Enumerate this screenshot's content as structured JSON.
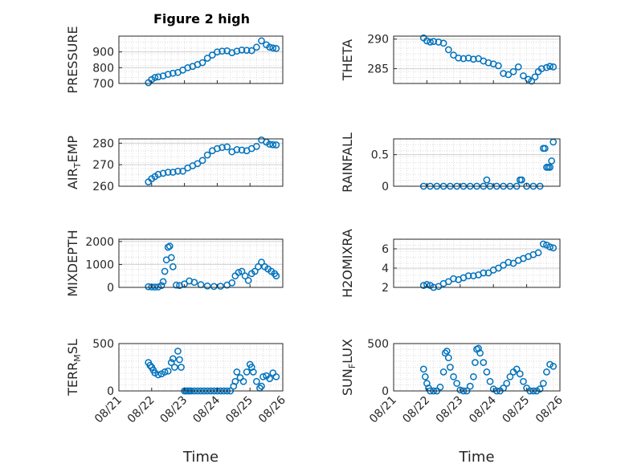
{
  "figure_title": "Figure 2 high",
  "colors": {
    "marker": "#0072BD",
    "axis": "#262626",
    "grid": "#dcdcdc"
  },
  "chart_data": [
    {
      "type": "scatter",
      "id": "pressure",
      "ylabel": "PRESSURE",
      "xlabel": "",
      "ylim": [
        700,
        1000
      ],
      "yticks": [
        700,
        800,
        900
      ],
      "xlim": [
        0,
        5
      ],
      "grid": true,
      "x": [
        0.9,
        1.0,
        1.1,
        1.2,
        1.35,
        1.5,
        1.65,
        1.8,
        1.95,
        2.1,
        2.25,
        2.4,
        2.55,
        2.7,
        2.85,
        3.0,
        3.15,
        3.3,
        3.45,
        3.6,
        3.75,
        3.9,
        4.05,
        4.2,
        4.35,
        4.5,
        4.6,
        4.7,
        4.8
      ],
      "y": [
        705,
        725,
        738,
        742,
        748,
        758,
        765,
        770,
        785,
        800,
        808,
        820,
        832,
        860,
        880,
        900,
        905,
        907,
        895,
        905,
        912,
        910,
        908,
        930,
        970,
        945,
        930,
        925,
        922
      ]
    },
    {
      "type": "scatter",
      "id": "theta",
      "ylabel": "THETA",
      "xlabel": "",
      "ylim": [
        282.5,
        290.5
      ],
      "yticks": [
        285,
        290
      ],
      "xlim": [
        0,
        5
      ],
      "grid": true,
      "x": [
        0.9,
        1.0,
        1.1,
        1.2,
        1.35,
        1.5,
        1.65,
        1.8,
        1.95,
        2.1,
        2.25,
        2.4,
        2.55,
        2.7,
        2.85,
        3.0,
        3.15,
        3.3,
        3.45,
        3.6,
        3.75,
        3.9,
        4.05,
        4.15,
        4.25,
        4.35,
        4.45,
        4.6,
        4.7,
        4.8
      ],
      "y": [
        290.2,
        289.7,
        289.5,
        289.6,
        289.5,
        289.3,
        288.2,
        287.3,
        286.8,
        286.7,
        286.8,
        286.6,
        286.7,
        286.3,
        286.0,
        285.8,
        285.5,
        284.2,
        284.0,
        284.5,
        285.3,
        283.8,
        283.2,
        282.9,
        283.6,
        284.5,
        285.0,
        285.2,
        285.4,
        285.3
      ]
    },
    {
      "type": "scatter",
      "id": "air_temp",
      "ylabel": "AIR_TEMP",
      "xlabel": "",
      "ylim": [
        260,
        282
      ],
      "yticks": [
        260,
        270,
        280
      ],
      "xlim": [
        0,
        5
      ],
      "grid": true,
      "x": [
        0.9,
        1.0,
        1.1,
        1.2,
        1.35,
        1.5,
        1.65,
        1.8,
        1.95,
        2.1,
        2.25,
        2.4,
        2.55,
        2.7,
        2.85,
        3.0,
        3.15,
        3.3,
        3.45,
        3.6,
        3.75,
        3.9,
        4.05,
        4.2,
        4.35,
        4.5,
        4.6,
        4.7,
        4.8
      ],
      "y": [
        262,
        263.5,
        264.5,
        265.5,
        266,
        266.5,
        266.5,
        267,
        267,
        268.5,
        269.5,
        270.5,
        272,
        274.5,
        276.5,
        277.5,
        278,
        278.3,
        276,
        277,
        276.8,
        276.5,
        277.5,
        278.5,
        281.5,
        280.5,
        279.5,
        279.3,
        279.2
      ]
    },
    {
      "type": "scatter",
      "id": "rainfall",
      "ylabel": "RAINFALL",
      "xlabel": "",
      "ylim": [
        0,
        0.75
      ],
      "yticks": [
        0,
        0.5
      ],
      "xlim": [
        0,
        5
      ],
      "grid": true,
      "x": [
        0.9,
        1.1,
        1.3,
        1.5,
        1.7,
        1.9,
        2.1,
        2.3,
        2.5,
        2.7,
        2.8,
        2.9,
        3.1,
        3.3,
        3.5,
        3.7,
        3.8,
        3.85,
        4.0,
        4.2,
        4.4,
        4.5,
        4.55,
        4.6,
        4.65,
        4.7,
        4.75,
        4.8
      ],
      "y": [
        0,
        0,
        0,
        0,
        0,
        0,
        0,
        0,
        0,
        0,
        0.1,
        0,
        0,
        0,
        0,
        0,
        0.1,
        0.1,
        0,
        0,
        0,
        0.6,
        0.6,
        0.3,
        0.3,
        0.3,
        0.4,
        0.7
      ]
    },
    {
      "type": "scatter",
      "id": "mixdepth",
      "ylabel": "MIXDEPTH",
      "xlabel": "",
      "ylim": [
        0,
        2100
      ],
      "yticks": [
        0,
        1000,
        2000
      ],
      "xlim": [
        0,
        5
      ],
      "grid": true,
      "x": [
        0.9,
        1.0,
        1.1,
        1.2,
        1.3,
        1.35,
        1.4,
        1.45,
        1.5,
        1.55,
        1.6,
        1.65,
        1.75,
        1.85,
        2.0,
        2.15,
        2.3,
        2.5,
        2.7,
        2.9,
        3.1,
        3.3,
        3.45,
        3.55,
        3.65,
        3.75,
        3.85,
        3.95,
        4.05,
        4.15,
        4.25,
        4.35,
        4.45,
        4.55,
        4.65,
        4.75,
        4.8
      ],
      "y": [
        30,
        20,
        15,
        20,
        80,
        250,
        700,
        1200,
        1750,
        1800,
        1300,
        900,
        100,
        80,
        150,
        280,
        220,
        120,
        60,
        40,
        50,
        100,
        200,
        500,
        650,
        700,
        500,
        300,
        600,
        700,
        900,
        1100,
        900,
        800,
        700,
        600,
        500
      ]
    },
    {
      "type": "scatter",
      "id": "h2omixra",
      "ylabel": "H2OMIXRA",
      "xlabel": "",
      "ylim": [
        2,
        7
      ],
      "yticks": [
        2,
        4,
        6
      ],
      "xlim": [
        0,
        5
      ],
      "grid": true,
      "x": [
        0.9,
        1.0,
        1.1,
        1.2,
        1.35,
        1.5,
        1.65,
        1.8,
        1.95,
        2.1,
        2.25,
        2.4,
        2.55,
        2.7,
        2.85,
        3.0,
        3.15,
        3.3,
        3.45,
        3.6,
        3.75,
        3.9,
        4.05,
        4.2,
        4.35,
        4.5,
        4.6,
        4.7,
        4.8
      ],
      "y": [
        2.2,
        2.3,
        2.2,
        2.0,
        2.1,
        2.4,
        2.6,
        2.9,
        2.8,
        3.0,
        3.2,
        3.2,
        3.3,
        3.5,
        3.5,
        3.8,
        4.0,
        4.3,
        4.6,
        4.5,
        4.8,
        5.0,
        5.2,
        5.4,
        5.6,
        6.5,
        6.4,
        6.2,
        6.1
      ]
    },
    {
      "type": "scatter",
      "id": "terr_msl",
      "ylabel": "TERR_MSL",
      "xlabel": "Time",
      "ylim": [
        0,
        500
      ],
      "yticks": [
        0,
        500
      ],
      "xlim": [
        0,
        5
      ],
      "grid": true,
      "xticks": [
        "08/21",
        "08/22",
        "08/23",
        "08/24",
        "08/25",
        "08/26"
      ],
      "x": [
        0.9,
        0.95,
        1.0,
        1.05,
        1.1,
        1.2,
        1.3,
        1.4,
        1.5,
        1.6,
        1.65,
        1.7,
        1.8,
        1.85,
        1.9,
        2.0,
        2.05,
        2.1,
        2.15,
        2.2,
        2.3,
        2.4,
        2.5,
        2.6,
        2.7,
        2.8,
        2.9,
        3.0,
        3.1,
        3.2,
        3.3,
        3.4,
        3.5,
        3.55,
        3.6,
        3.7,
        3.8,
        3.9,
        4.0,
        4.05,
        4.1,
        4.2,
        4.3,
        4.35,
        4.4,
        4.5,
        4.6,
        4.7,
        4.8
      ],
      "y": [
        300,
        270,
        250,
        220,
        190,
        170,
        180,
        200,
        210,
        300,
        340,
        250,
        420,
        330,
        250,
        0,
        0,
        0,
        0,
        0,
        0,
        0,
        0,
        0,
        0,
        0,
        0,
        0,
        0,
        0,
        0,
        0,
        50,
        100,
        200,
        140,
        100,
        200,
        280,
        250,
        200,
        100,
        30,
        50,
        150,
        160,
        130,
        190,
        150
      ]
    },
    {
      "type": "scatter",
      "id": "sun_flux",
      "ylabel": "SUN_FLUX",
      "xlabel": "Time",
      "ylim": [
        0,
        500
      ],
      "yticks": [
        0,
        500
      ],
      "xlim": [
        0,
        5
      ],
      "grid": true,
      "xticks": [
        "08/21",
        "08/22",
        "08/23",
        "08/24",
        "08/25",
        "08/26"
      ],
      "x": [
        0.9,
        0.95,
        1.0,
        1.05,
        1.1,
        1.2,
        1.3,
        1.4,
        1.5,
        1.55,
        1.6,
        1.65,
        1.7,
        1.8,
        1.9,
        2.0,
        2.1,
        2.2,
        2.3,
        2.4,
        2.45,
        2.5,
        2.55,
        2.6,
        2.7,
        2.8,
        2.9,
        3.0,
        3.1,
        3.2,
        3.3,
        3.4,
        3.5,
        3.6,
        3.7,
        3.8,
        3.9,
        4.0,
        4.1,
        4.2,
        4.3,
        4.4,
        4.5,
        4.6,
        4.7,
        4.8
      ],
      "y": [
        230,
        150,
        80,
        30,
        0,
        0,
        0,
        40,
        200,
        400,
        420,
        350,
        250,
        150,
        80,
        10,
        0,
        0,
        50,
        150,
        300,
        440,
        450,
        400,
        300,
        200,
        100,
        20,
        0,
        0,
        30,
        80,
        150,
        200,
        230,
        180,
        100,
        30,
        0,
        0,
        0,
        20,
        80,
        200,
        280,
        260
      ]
    }
  ]
}
